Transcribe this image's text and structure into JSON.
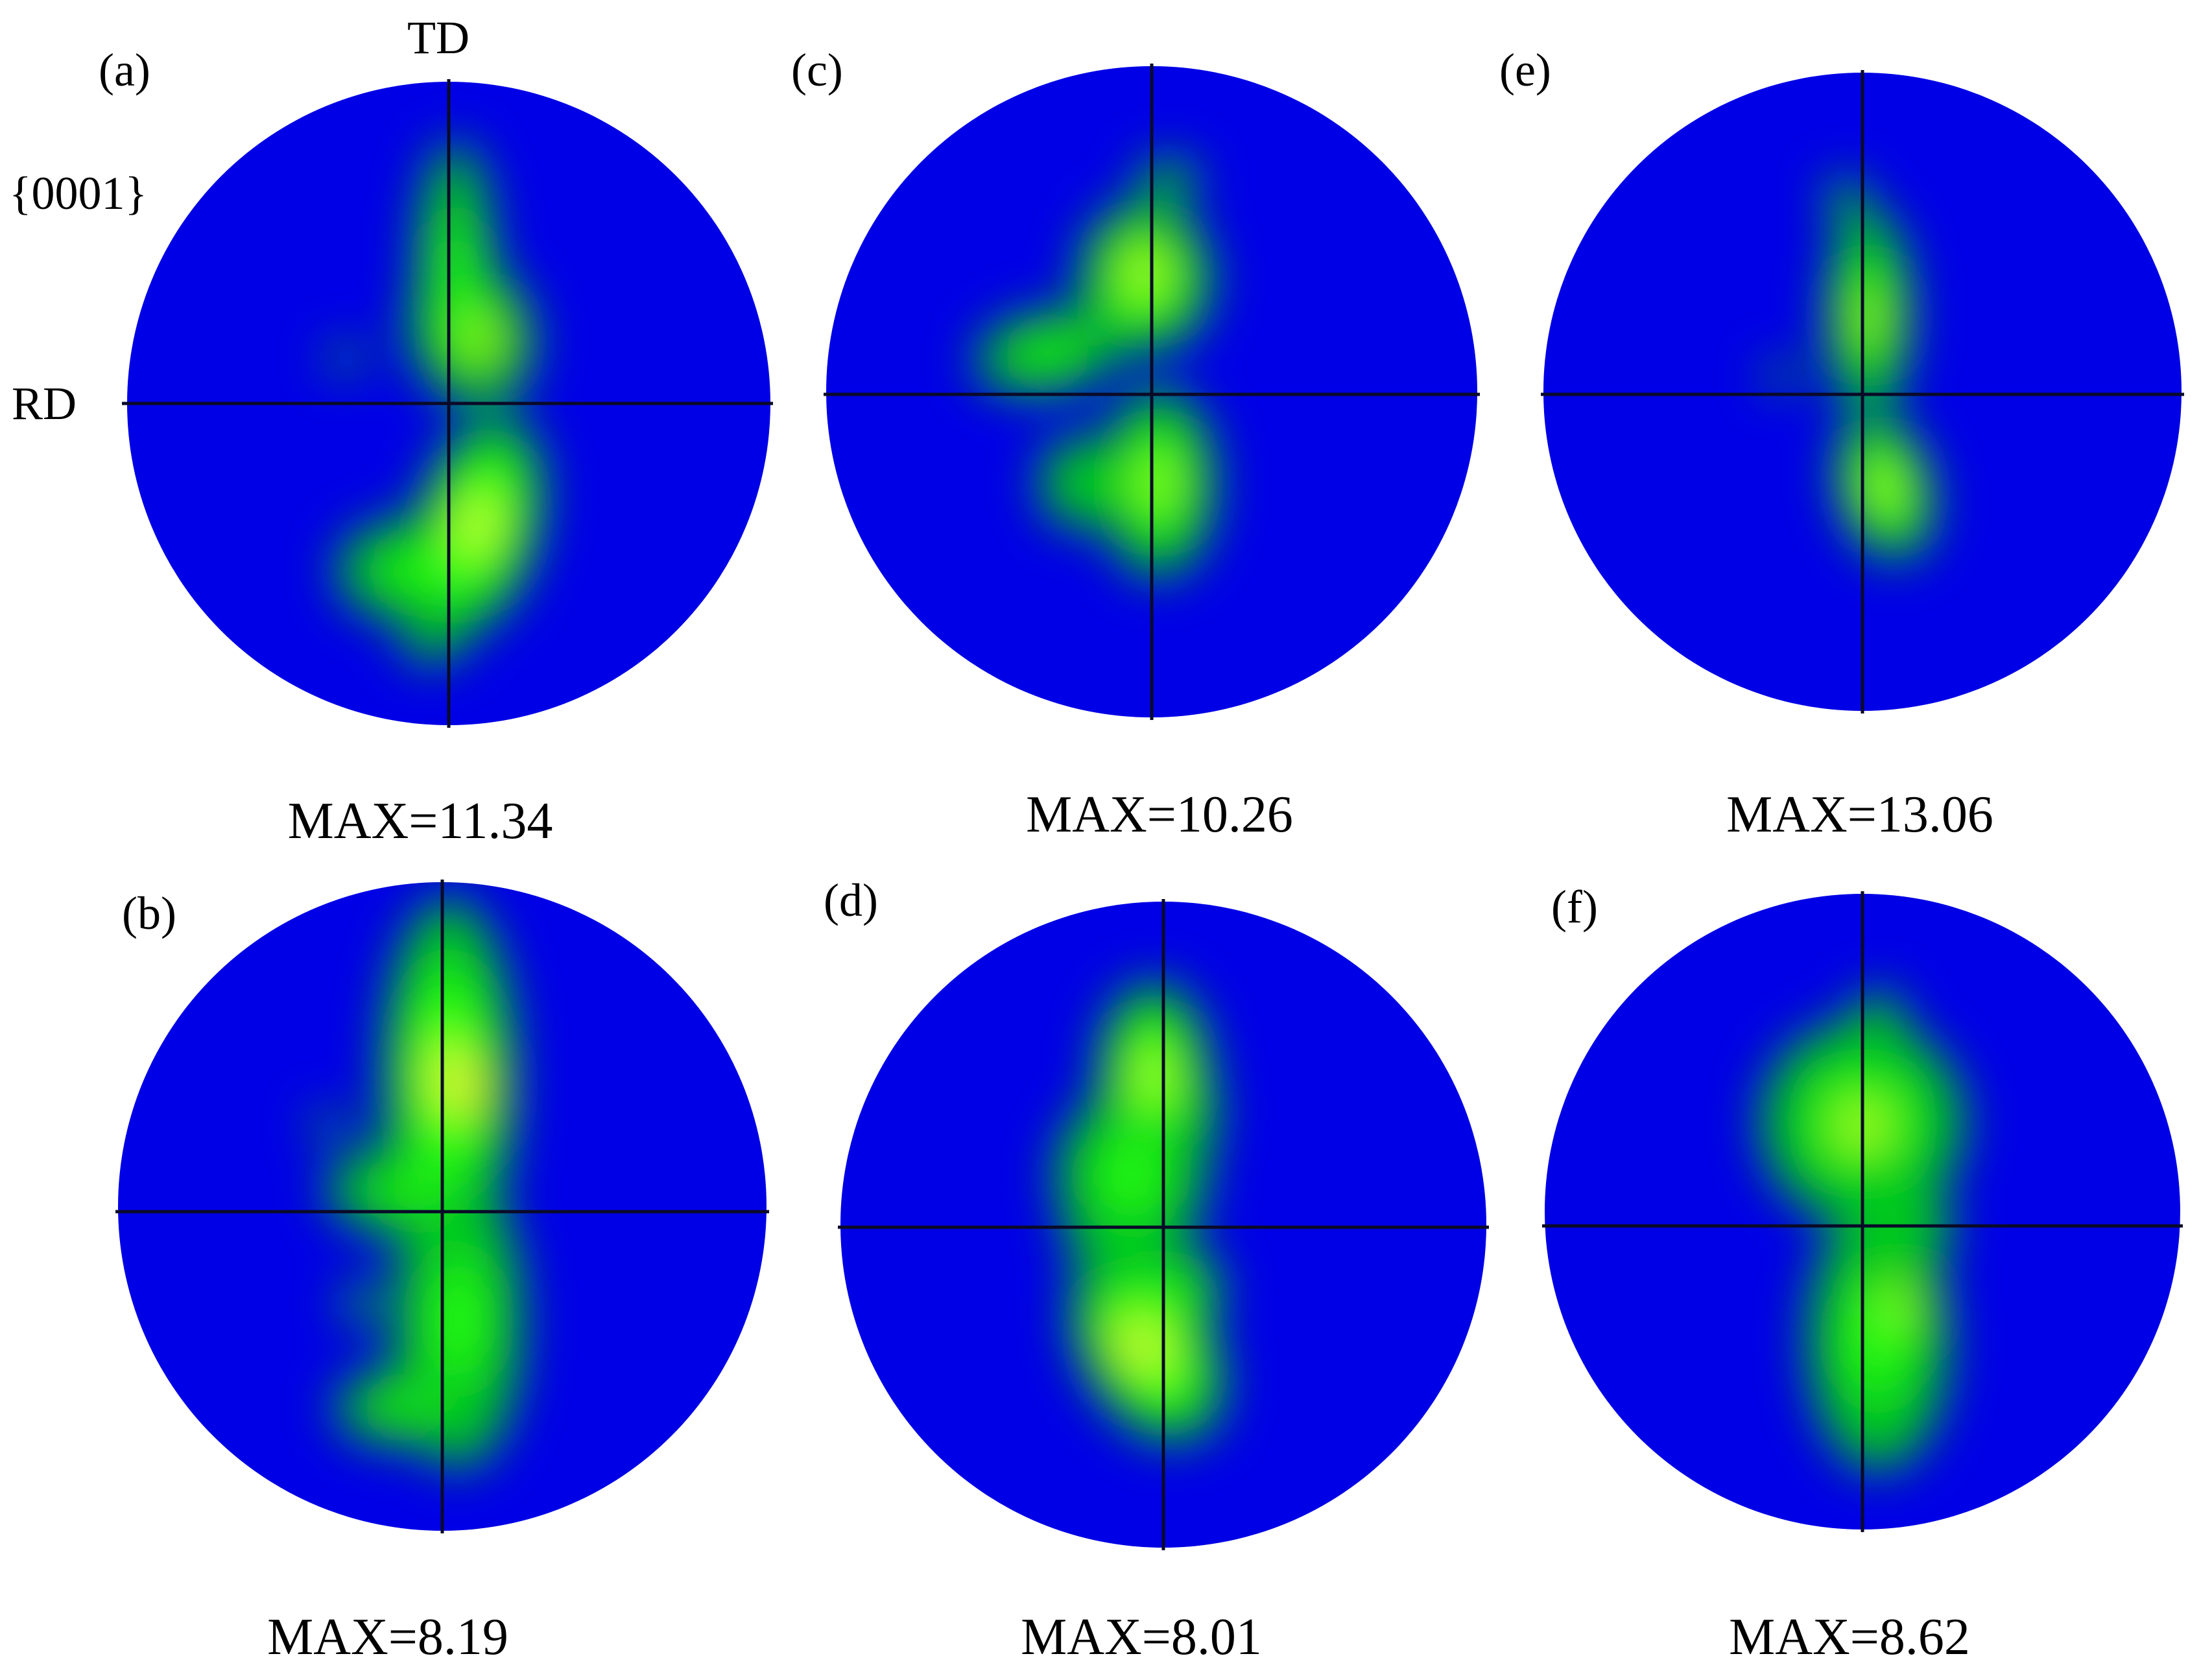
{
  "figure": {
    "axes": {
      "top": "TD",
      "left": "RD",
      "plane": "{0001}"
    },
    "colormap": [
      "#0000e6",
      "#00c81e",
      "#28ff14",
      "#f0ff3c",
      "#ff9614",
      "#f01e0a"
    ],
    "panels": [
      {
        "label": "(a)",
        "max_text": "MAX=11.34",
        "max": 11.34,
        "blobs": [
          {
            "u": 0.02,
            "v": -0.42,
            "rx": 0.09,
            "ry": 0.3,
            "a": 0,
            "w": 0.9
          },
          {
            "u": 0.07,
            "v": -0.22,
            "rx": 0.13,
            "ry": 0.16,
            "a": -20,
            "w": 1.0
          },
          {
            "u": 0.1,
            "v": -0.2,
            "rx": 0.05,
            "ry": 0.07,
            "a": -20,
            "w": 1.9
          },
          {
            "u": 0.09,
            "v": 0.38,
            "rx": 0.13,
            "ry": 0.24,
            "a": 15,
            "w": 1.35
          },
          {
            "u": -0.1,
            "v": 0.52,
            "rx": 0.2,
            "ry": 0.13,
            "a": 0,
            "w": 0.85
          },
          {
            "u": -0.32,
            "v": -0.14,
            "rx": 0.08,
            "ry": 0.05,
            "a": 0,
            "w": 0.5
          },
          {
            "u": -0.05,
            "v": 0.74,
            "rx": 0.14,
            "ry": 0.1,
            "a": 0,
            "w": 0.45
          }
        ]
      },
      {
        "label": "(b)",
        "max_text": "MAX=8.19",
        "max": 8.19,
        "blobs": [
          {
            "u": 0.02,
            "v": -0.4,
            "rx": 0.14,
            "ry": 0.38,
            "a": 0,
            "w": 1.25
          },
          {
            "u": 0.08,
            "v": -0.36,
            "rx": 0.07,
            "ry": 0.12,
            "a": 10,
            "w": 2.0
          },
          {
            "u": -0.1,
            "v": -0.05,
            "rx": 0.22,
            "ry": 0.12,
            "a": 0,
            "w": 0.8
          },
          {
            "u": 0.05,
            "v": 0.35,
            "rx": 0.15,
            "ry": 0.35,
            "a": 0,
            "w": 0.9
          },
          {
            "u": -0.12,
            "v": 0.62,
            "rx": 0.18,
            "ry": 0.1,
            "a": 0,
            "w": 0.8
          },
          {
            "u": -0.35,
            "v": -0.25,
            "rx": 0.08,
            "ry": 0.06,
            "a": 0,
            "w": 0.45
          },
          {
            "u": -0.25,
            "v": 0.3,
            "rx": 0.08,
            "ry": 0.1,
            "a": 0,
            "w": 0.45
          }
        ]
      },
      {
        "label": "(c)",
        "max_text": "MAX=10.26",
        "max": 10.26,
        "blobs": [
          {
            "u": -0.02,
            "v": -0.35,
            "rx": 0.14,
            "ry": 0.16,
            "a": 0,
            "w": 1.2
          },
          {
            "u": -0.02,
            "v": -0.38,
            "rx": 0.06,
            "ry": 0.07,
            "a": 0,
            "w": 2.0
          },
          {
            "u": -0.32,
            "v": -0.12,
            "rx": 0.18,
            "ry": 0.1,
            "a": -10,
            "w": 0.85
          },
          {
            "u": 0.02,
            "v": 0.28,
            "rx": 0.12,
            "ry": 0.2,
            "a": 0,
            "w": 1.15
          },
          {
            "u": -0.22,
            "v": 0.28,
            "rx": 0.14,
            "ry": 0.16,
            "a": 0,
            "w": 0.6
          },
          {
            "u": 0.05,
            "v": -0.65,
            "rx": 0.14,
            "ry": 0.1,
            "a": 0,
            "w": 0.45
          }
        ]
      },
      {
        "label": "(d)",
        "max_text": "MAX=8.01",
        "max": 8.01,
        "blobs": [
          {
            "u": -0.03,
            "v": -0.46,
            "rx": 0.12,
            "ry": 0.2,
            "a": 0,
            "w": 1.25
          },
          {
            "u": -0.1,
            "v": -0.15,
            "rx": 0.16,
            "ry": 0.18,
            "a": 0,
            "w": 1.0
          },
          {
            "u": 0.08,
            "v": -0.35,
            "rx": 0.1,
            "ry": 0.2,
            "a": 0,
            "w": 0.6
          },
          {
            "u": -0.05,
            "v": 0.38,
            "rx": 0.14,
            "ry": 0.22,
            "a": -30,
            "w": 1.35
          },
          {
            "u": -0.1,
            "v": 0.37,
            "rx": 0.05,
            "ry": 0.1,
            "a": -35,
            "w": 2.05
          },
          {
            "u": 0.05,
            "v": 0.2,
            "rx": 0.1,
            "ry": 0.1,
            "a": 0,
            "w": 0.9
          },
          {
            "u": -0.18,
            "v": 0.05,
            "rx": 0.16,
            "ry": 0.08,
            "a": 0,
            "w": 0.55
          }
        ]
      },
      {
        "label": "(e)",
        "max_text": "MAX=13.06",
        "max": 13.06,
        "blobs": [
          {
            "u": 0.02,
            "v": -0.25,
            "rx": 0.09,
            "ry": 0.22,
            "a": 0,
            "w": 1.1
          },
          {
            "u": 0.02,
            "v": -0.23,
            "rx": 0.05,
            "ry": 0.06,
            "a": 0,
            "w": 2.05
          },
          {
            "u": 0.07,
            "v": 0.3,
            "rx": 0.1,
            "ry": 0.16,
            "a": -15,
            "w": 1.25
          },
          {
            "u": -0.05,
            "v": -0.6,
            "rx": 0.08,
            "ry": 0.1,
            "a": 0,
            "w": 0.5
          },
          {
            "u": -0.25,
            "v": -0.05,
            "rx": 0.08,
            "ry": 0.06,
            "a": 0,
            "w": 0.45
          }
        ]
      },
      {
        "label": "(f)",
        "max_text": "MAX=8.62",
        "max": 8.62,
        "blobs": [
          {
            "u": 0.0,
            "v": -0.28,
            "rx": 0.22,
            "ry": 0.22,
            "a": 0,
            "w": 1.05
          },
          {
            "u": 0.0,
            "v": -0.27,
            "rx": 0.08,
            "ry": 0.08,
            "a": 0,
            "w": 2.1
          },
          {
            "u": 0.05,
            "v": -0.6,
            "rx": 0.1,
            "ry": 0.12,
            "a": 0,
            "w": 0.55
          },
          {
            "u": 0.05,
            "v": 0.4,
            "rx": 0.16,
            "ry": 0.3,
            "a": 0,
            "w": 0.95
          },
          {
            "u": 0.12,
            "v": 0.3,
            "rx": 0.07,
            "ry": 0.07,
            "a": 0,
            "w": 1.5
          },
          {
            "u": 0.2,
            "v": 0.05,
            "rx": 0.1,
            "ry": 0.14,
            "a": 0,
            "w": 0.55
          }
        ]
      }
    ]
  }
}
